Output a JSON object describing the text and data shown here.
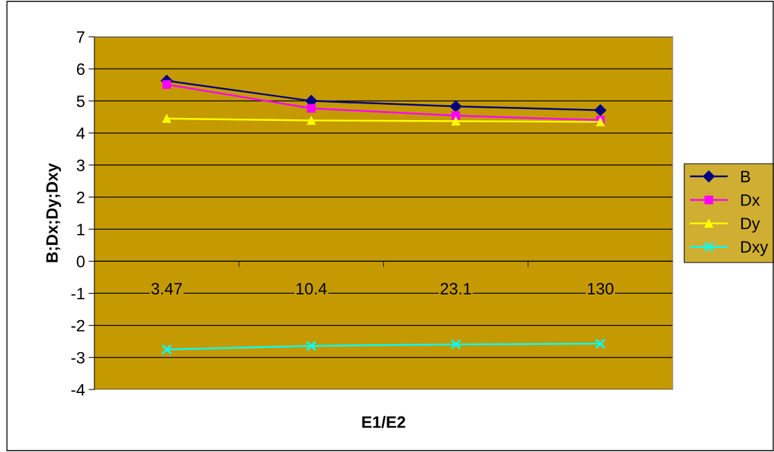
{
  "chart_data": {
    "type": "line",
    "xlabel": "E1/E2",
    "ylabel": "B;Dx;Dy;Dxy",
    "categories": [
      "3.47",
      "10.4",
      "23.1",
      "130"
    ],
    "series": [
      {
        "name": "B",
        "color": "#000080",
        "marker": "diamond",
        "values": [
          5.63,
          5.0,
          4.83,
          4.71
        ]
      },
      {
        "name": "Dx",
        "color": "#ff00ff",
        "marker": "square",
        "values": [
          5.51,
          4.77,
          4.54,
          4.4
        ]
      },
      {
        "name": "Dy",
        "color": "#ffff00",
        "marker": "triangle",
        "values": [
          4.45,
          4.39,
          4.37,
          4.35
        ]
      },
      {
        "name": "Dxy",
        "color": "#00ffff",
        "marker": "cross",
        "values": [
          -2.75,
          -2.64,
          -2.59,
          -2.57
        ]
      }
    ],
    "ylim": [
      -4,
      7
    ],
    "yticks": [
      -4,
      -3,
      -2,
      -1,
      0,
      1,
      2,
      3,
      4,
      5,
      6,
      7
    ],
    "grid": "y",
    "legend": "right",
    "line_style": "solid"
  }
}
